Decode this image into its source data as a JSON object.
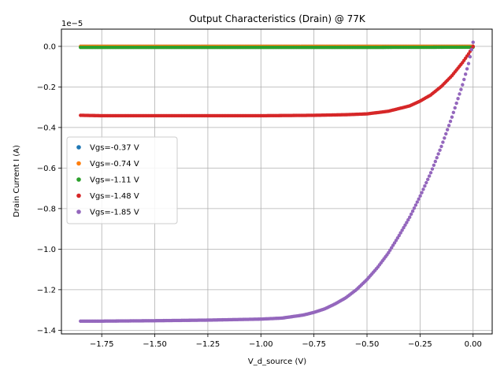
{
  "chart_data": {
    "type": "scatter",
    "title": "Output Characteristics (Drain) @ 77K",
    "xlabel": "V_d_source (V)",
    "ylabel": "Drain Current I (A)",
    "y_offset_label": "1e−5",
    "y_scale": 1e-05,
    "xlim": [
      -1.94,
      0.09
    ],
    "ylim": [
      -1.418,
      0.085
    ],
    "x_ticks": [
      -1.75,
      -1.5,
      -1.25,
      -1.0,
      -0.75,
      -0.5,
      -0.25,
      0.0
    ],
    "x_tick_labels": [
      "−1.75",
      "−1.50",
      "−1.25",
      "−1.00",
      "−0.75",
      "−0.50",
      "−0.25",
      "0.00"
    ],
    "y_ticks": [
      -1.4,
      -1.2,
      -1.0,
      -0.8,
      -0.6,
      -0.4,
      -0.2,
      0.0
    ],
    "y_tick_labels": [
      "−1.4",
      "−1.2",
      "−1.0",
      "−0.8",
      "−0.6",
      "−0.4",
      "−0.2",
      "0.0"
    ],
    "grid": true,
    "legend_position": "center-left",
    "series": [
      {
        "name": "Vgs=-0.37 V",
        "color": "#1f77b4",
        "points": [
          [
            -1.85,
            0.0
          ],
          [
            -1.5,
            0.0
          ],
          [
            -1.0,
            0.0
          ],
          [
            -0.5,
            0.0
          ],
          [
            0.0,
            0.0
          ]
        ]
      },
      {
        "name": "Vgs=-0.74 V",
        "color": "#ff7f0e",
        "points": [
          [
            -1.85,
            0.0
          ],
          [
            -1.5,
            0.0
          ],
          [
            -1.0,
            0.0
          ],
          [
            -0.5,
            0.0
          ],
          [
            0.0,
            0.0
          ]
        ]
      },
      {
        "name": "Vgs=-1.11 V",
        "color": "#2ca02c",
        "points": [
          [
            -1.85,
            -0.005
          ],
          [
            -1.5,
            -0.005
          ],
          [
            -1.0,
            -0.005
          ],
          [
            -0.5,
            -0.005
          ],
          [
            0.0,
            -0.004
          ]
        ]
      },
      {
        "name": "Vgs=-1.48 V",
        "color": "#d62728",
        "points": [
          [
            -1.85,
            -0.34
          ],
          [
            -1.75,
            -0.342
          ],
          [
            -1.5,
            -0.342
          ],
          [
            -1.25,
            -0.342
          ],
          [
            -1.0,
            -0.342
          ],
          [
            -0.75,
            -0.34
          ],
          [
            -0.6,
            -0.337
          ],
          [
            -0.5,
            -0.333
          ],
          [
            -0.4,
            -0.32
          ],
          [
            -0.3,
            -0.294
          ],
          [
            -0.25,
            -0.27
          ],
          [
            -0.2,
            -0.24
          ],
          [
            -0.15,
            -0.198
          ],
          [
            -0.1,
            -0.145
          ],
          [
            -0.05,
            -0.08
          ],
          [
            -0.02,
            -0.035
          ],
          [
            0.0,
            0.0
          ]
        ]
      },
      {
        "name": "Vgs=-1.85 V",
        "color": "#9467bd",
        "points": [
          [
            -1.85,
            -1.355
          ],
          [
            -1.75,
            -1.355
          ],
          [
            -1.5,
            -1.353
          ],
          [
            -1.25,
            -1.35
          ],
          [
            -1.0,
            -1.345
          ],
          [
            -0.9,
            -1.34
          ],
          [
            -0.8,
            -1.325
          ],
          [
            -0.75,
            -1.312
          ],
          [
            -0.7,
            -1.295
          ],
          [
            -0.65,
            -1.27
          ],
          [
            -0.6,
            -1.24
          ],
          [
            -0.55,
            -1.2
          ],
          [
            -0.5,
            -1.15
          ],
          [
            -0.45,
            -1.09
          ],
          [
            -0.4,
            -1.02
          ],
          [
            -0.35,
            -0.935
          ],
          [
            -0.3,
            -0.845
          ],
          [
            -0.25,
            -0.74
          ],
          [
            -0.2,
            -0.625
          ],
          [
            -0.15,
            -0.495
          ],
          [
            -0.1,
            -0.35
          ],
          [
            -0.05,
            -0.19
          ],
          [
            -0.02,
            -0.08
          ],
          [
            0.0,
            0.02
          ]
        ]
      }
    ]
  }
}
